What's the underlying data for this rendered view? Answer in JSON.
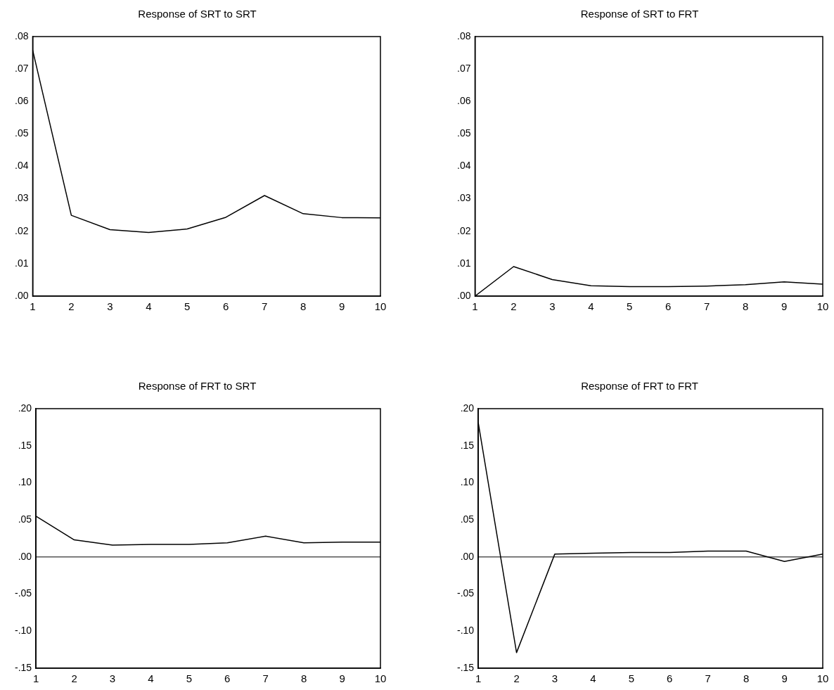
{
  "chart_data": [
    {
      "type": "line",
      "title": "Response of SRT to SRT",
      "categories": [
        "1",
        "2",
        "3",
        "4",
        "5",
        "6",
        "7",
        "8",
        "9",
        "10"
      ],
      "series": [
        {
          "color": "#000000",
          "values": [
            0.0758,
            0.0249,
            0.0205,
            0.0196,
            0.0207,
            0.0243,
            0.031,
            0.0254,
            0.0242,
            0.0241
          ]
        }
      ],
      "ylim": [
        0,
        0.08
      ],
      "yticks": [
        {
          "value": 0,
          "label": ".00"
        },
        {
          "value": 0.01,
          "label": ".01"
        },
        {
          "value": 0.02,
          "label": ".02"
        },
        {
          "value": 0.03,
          "label": ".03"
        },
        {
          "value": 0.04,
          "label": ".04"
        },
        {
          "value": 0.05,
          "label": ".05"
        },
        {
          "value": 0.06,
          "label": ".06"
        },
        {
          "value": 0.07,
          "label": ".07"
        },
        {
          "value": 0.08,
          "label": ".08"
        }
      ],
      "grid": false,
      "legend": false,
      "marker": "none",
      "line_style": "solid"
    },
    {
      "type": "line",
      "title": "Response of SRT to FRT",
      "categories": [
        "1",
        "2",
        "3",
        "4",
        "5",
        "6",
        "7",
        "8",
        "9",
        "10"
      ],
      "series": [
        {
          "color": "#000000",
          "values": [
            0.0,
            0.0091,
            0.0051,
            0.0032,
            0.0029,
            0.0029,
            0.0031,
            0.0035,
            0.0044,
            0.0037
          ]
        }
      ],
      "ylim": [
        0,
        0.08
      ],
      "yticks": [
        {
          "value": 0,
          "label": ".00"
        },
        {
          "value": 0.01,
          "label": ".01"
        },
        {
          "value": 0.02,
          "label": ".02"
        },
        {
          "value": 0.03,
          "label": ".03"
        },
        {
          "value": 0.04,
          "label": ".04"
        },
        {
          "value": 0.05,
          "label": ".05"
        },
        {
          "value": 0.06,
          "label": ".06"
        },
        {
          "value": 0.07,
          "label": ".07"
        },
        {
          "value": 0.08,
          "label": ".08"
        }
      ],
      "grid": false,
      "legend": false,
      "marker": "none",
      "line_style": "solid"
    },
    {
      "type": "line",
      "title": "Response of FRT to SRT",
      "categories": [
        "1",
        "2",
        "3",
        "4",
        "5",
        "6",
        "7",
        "8",
        "9",
        "10"
      ],
      "series": [
        {
          "color": "#000000",
          "values": [
            0.055,
            0.023,
            0.016,
            0.017,
            0.017,
            0.019,
            0.028,
            0.019,
            0.02,
            0.02
          ]
        }
      ],
      "ylim": [
        -0.15,
        0.2
      ],
      "yticks": [
        {
          "value": -0.15,
          "label": "-.15"
        },
        {
          "value": -0.1,
          "label": "-.10"
        },
        {
          "value": -0.05,
          "label": "-.05"
        },
        {
          "value": 0,
          "label": ".00"
        },
        {
          "value": 0.05,
          "label": ".05"
        },
        {
          "value": 0.1,
          "label": ".10"
        },
        {
          "value": 0.15,
          "label": ".15"
        },
        {
          "value": 0.2,
          "label": ".20"
        }
      ],
      "ref_lines": [
        {
          "axis": "y",
          "value": 0,
          "color": "#000000"
        }
      ],
      "grid": false,
      "legend": false,
      "marker": "none",
      "line_style": "solid"
    },
    {
      "type": "line",
      "title": "Response of FRT to FRT",
      "categories": [
        "1",
        "2",
        "3",
        "4",
        "5",
        "6",
        "7",
        "8",
        "9",
        "10"
      ],
      "series": [
        {
          "color": "#000000",
          "values": [
            0.181,
            -0.129,
            0.004,
            0.005,
            0.006,
            0.006,
            0.008,
            0.008,
            -0.006,
            0.004
          ]
        }
      ],
      "ylim": [
        -0.15,
        0.2
      ],
      "yticks": [
        {
          "value": -0.15,
          "label": "-.15"
        },
        {
          "value": -0.1,
          "label": "-.10"
        },
        {
          "value": -0.05,
          "label": "-.05"
        },
        {
          "value": 0,
          "label": ".00"
        },
        {
          "value": 0.05,
          "label": ".05"
        },
        {
          "value": 0.1,
          "label": ".10"
        },
        {
          "value": 0.15,
          "label": ".15"
        },
        {
          "value": 0.2,
          "label": ".20"
        }
      ],
      "ref_lines": [
        {
          "axis": "y",
          "value": 0,
          "color": "#000000"
        }
      ],
      "grid": false,
      "legend": false,
      "marker": "none",
      "line_style": "solid"
    }
  ]
}
